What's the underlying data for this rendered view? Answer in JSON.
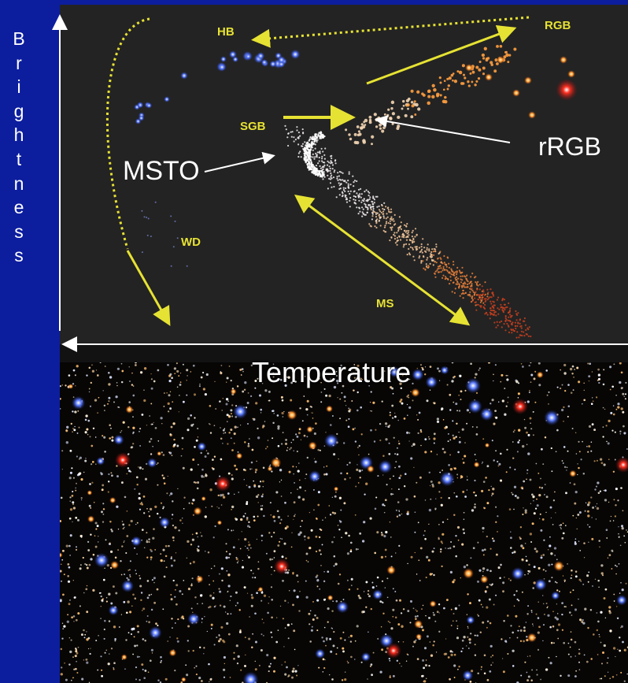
{
  "axis": {
    "y_label": "Brightness",
    "x_label": "Temperature"
  },
  "regions": {
    "hb": "HB",
    "rgb": "RGB",
    "sgb": "SGB",
    "wd": "WD",
    "ms": "MS"
  },
  "annotations": {
    "msto": "MSTO",
    "rrgb": "rRGB"
  },
  "colors": {
    "background": "#0c1e9e",
    "panel": "#232323",
    "label_yellow": "#e6e233",
    "axis_white": "#ffffff"
  }
}
